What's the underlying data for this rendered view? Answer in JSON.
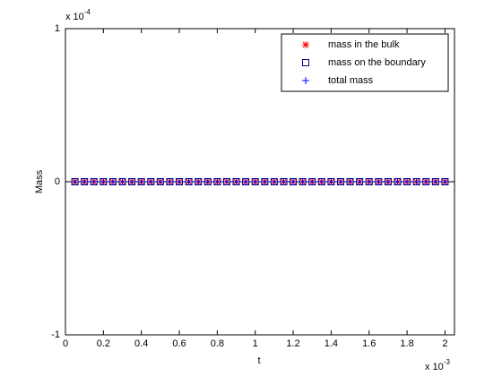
{
  "chart_data": {
    "type": "scatter",
    "x_label": "t",
    "y_label": "Mass",
    "x_exponent_base": "x 10",
    "x_exponent": "-3",
    "y_exponent_base": "x 10",
    "y_exponent": "-4",
    "x": [
      5e-05,
      0.0001,
      0.00015,
      0.0002,
      0.00025,
      0.0003,
      0.00035,
      0.0004,
      0.00045,
      0.0005,
      0.00055,
      0.0006,
      0.00065,
      0.0007,
      0.00075,
      0.0008,
      0.00085,
      0.0009,
      0.00095,
      0.001,
      0.00105,
      0.0011,
      0.00115,
      0.0012,
      0.00125,
      0.0013,
      0.00135,
      0.0014,
      0.00145,
      0.0015,
      0.00155,
      0.0016,
      0.00165,
      0.0017,
      0.00175,
      0.0018,
      0.00185,
      0.0019,
      0.00195,
      0.002
    ],
    "series": [
      {
        "name": "mass in the bulk",
        "color": "#ff0000",
        "marker": "star",
        "values": [
          0,
          0,
          0,
          0,
          0,
          0,
          0,
          0,
          0,
          0,
          0,
          0,
          0,
          0,
          0,
          0,
          0,
          0,
          0,
          0,
          0,
          0,
          0,
          0,
          0,
          0,
          0,
          0,
          0,
          0,
          0,
          0,
          0,
          0,
          0,
          0,
          0,
          0,
          0,
          0
        ]
      },
      {
        "name": "mass on the boundary",
        "color": "#000080",
        "marker": "square",
        "values": [
          0,
          0,
          0,
          0,
          0,
          0,
          0,
          0,
          0,
          0,
          0,
          0,
          0,
          0,
          0,
          0,
          0,
          0,
          0,
          0,
          0,
          0,
          0,
          0,
          0,
          0,
          0,
          0,
          0,
          0,
          0,
          0,
          0,
          0,
          0,
          0,
          0,
          0,
          0,
          0
        ]
      },
      {
        "name": "total mass",
        "color": "#0000ff",
        "marker": "plus",
        "values": [
          0,
          0,
          0,
          0,
          0,
          0,
          0,
          0,
          0,
          0,
          0,
          0,
          0,
          0,
          0,
          0,
          0,
          0,
          0,
          0,
          0,
          0,
          0,
          0,
          0,
          0,
          0,
          0,
          0,
          0,
          0,
          0,
          0,
          0,
          0,
          0,
          0,
          0,
          0,
          0
        ]
      }
    ],
    "xlim": [
      0,
      0.00205
    ],
    "xticks": [
      0,
      {
        "value": 0.0002,
        "label": "0.2"
      },
      {
        "value": 0.0004,
        "label": "0.4"
      },
      {
        "value": 0.0006,
        "label": "0.6"
      },
      {
        "value": 0.0008,
        "label": "0.8"
      },
      {
        "value": 0.001,
        "label": "1"
      },
      {
        "value": 0.0012,
        "label": "1.2"
      },
      {
        "value": 0.0014,
        "label": "1.4"
      },
      {
        "value": 0.0016,
        "label": "1.6"
      },
      {
        "value": 0.0018,
        "label": "1.8"
      },
      {
        "value": 0.002,
        "label": "2"
      }
    ],
    "ylim": [
      -0.0001,
      0.0001
    ],
    "yticks": [
      {
        "value": -0.0001,
        "label": "-1"
      },
      0,
      {
        "value": 0.0001,
        "label": "1"
      }
    ],
    "grid": false,
    "legend": "top-right"
  }
}
